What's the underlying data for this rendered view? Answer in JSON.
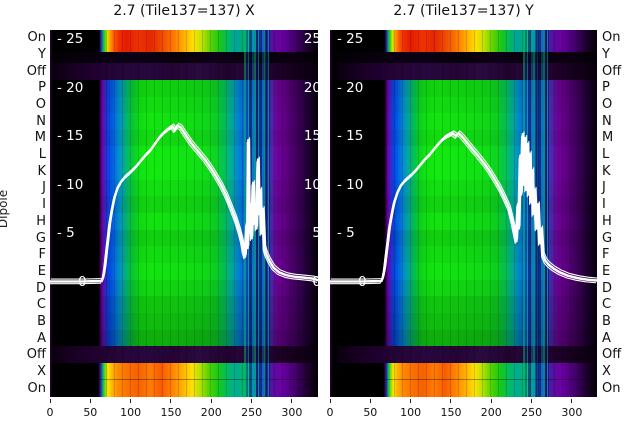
{
  "figure": {
    "ylabel": "Dipole",
    "x_ticks": [
      "0",
      "50",
      "100",
      "150",
      "200",
      "250",
      "300"
    ],
    "dipole_labels": [
      "On",
      "Y",
      "Off",
      "P",
      "O",
      "N",
      "M",
      "L",
      "K",
      "J",
      "I",
      "H",
      "G",
      "F",
      "E",
      "D",
      "C",
      "B",
      "A",
      "Off",
      "X",
      "On"
    ],
    "inner_scale_labels": [
      "- 25",
      "- 20",
      "- 15",
      "- 10",
      "- 5",
      "0"
    ],
    "right_scale_labels": [
      "25",
      "20",
      "15",
      "10",
      "5",
      "0"
    ],
    "colors": {
      "background": "#ffffff",
      "plot_background": "#000000",
      "curve": "#ffffff",
      "text": "#111111"
    }
  },
  "chart_data": {
    "type": "heatmap",
    "description": "Two spectrogram panels (power vs frequency channel) for each dipole/test state of Tile137, X and Y polarisations, with overlaid white bandpass curves on an inner 0-25 scale",
    "x_range": [
      0,
      332
    ],
    "x_ticks": [
      0,
      50,
      100,
      150,
      200,
      250,
      300
    ],
    "value_ticks": [
      25,
      20,
      15,
      10,
      5,
      0
    ],
    "y_axis_label": "Dipole",
    "y_categories": [
      "On",
      "Y",
      "Off",
      "P",
      "O",
      "N",
      "M",
      "L",
      "K",
      "J",
      "I",
      "H",
      "G",
      "F",
      "E",
      "D",
      "C",
      "B",
      "A",
      "Off",
      "X",
      "On"
    ],
    "rows": [
      {
        "label": "On",
        "type": "hot-top",
        "weight": 1.3
      },
      {
        "label": "Y",
        "type": "dark",
        "weight": 0.7
      },
      {
        "label": "Off",
        "type": "off"
      },
      {
        "label": "P",
        "type": "mid",
        "brightness": 0.96
      },
      {
        "label": "O",
        "type": "mid",
        "brightness": 1.0
      },
      {
        "label": "N",
        "type": "mid",
        "brightness": 1.04
      },
      {
        "label": "M",
        "type": "mid",
        "brightness": 1.0
      },
      {
        "label": "L",
        "type": "mid",
        "brightness": 1.07
      },
      {
        "label": "K",
        "type": "mid",
        "brightness": 1.07
      },
      {
        "label": "J",
        "type": "mid",
        "brightness": 1.02
      },
      {
        "label": "I",
        "type": "mid",
        "brightness": 0.97
      },
      {
        "label": "H",
        "type": "mid",
        "brightness": 1.03
      },
      {
        "label": "G",
        "type": "mid",
        "brightness": 0.95
      },
      {
        "label": "F",
        "type": "mid",
        "brightness": 1.0
      },
      {
        "label": "E",
        "type": "mid",
        "brightness": 1.04
      },
      {
        "label": "D",
        "type": "mid",
        "brightness": 0.98
      },
      {
        "label": "C",
        "type": "mid",
        "brightness": 0.9
      },
      {
        "label": "B",
        "type": "mid",
        "brightness": 0.86
      },
      {
        "label": "A",
        "type": "mid",
        "brightness": 0.8
      },
      {
        "label": "Off",
        "type": "off"
      },
      {
        "label": "X",
        "type": "hot-bottom"
      },
      {
        "label": "On",
        "type": "hot-bottom"
      }
    ],
    "panels": [
      {
        "title": "2.7 (Tile137=137) X",
        "curve": [
          [
            0,
            0.05
          ],
          [
            40,
            0.05
          ],
          [
            64,
            0.1
          ],
          [
            66,
            0.5
          ],
          [
            68,
            1.5
          ],
          [
            70,
            3.0
          ],
          [
            72,
            4.5
          ],
          [
            74,
            6.0
          ],
          [
            77,
            7.5
          ],
          [
            80,
            8.7
          ],
          [
            84,
            9.7
          ],
          [
            88,
            10.3
          ],
          [
            93,
            10.8
          ],
          [
            100,
            11.3
          ],
          [
            106,
            11.8
          ],
          [
            112,
            12.4
          ],
          [
            118,
            13.0
          ],
          [
            124,
            13.5
          ],
          [
            130,
            14.2
          ],
          [
            136,
            14.9
          ],
          [
            142,
            15.4
          ],
          [
            148,
            15.8
          ],
          [
            152,
            16.0
          ],
          [
            155,
            15.6
          ],
          [
            158,
            16.1
          ],
          [
            162,
            15.9
          ],
          [
            166,
            15.4
          ],
          [
            170,
            14.9
          ],
          [
            175,
            14.3
          ],
          [
            180,
            13.8
          ],
          [
            186,
            13.2
          ],
          [
            192,
            12.6
          ],
          [
            198,
            11.9
          ],
          [
            205,
            11.0
          ],
          [
            212,
            10.0
          ],
          [
            218,
            9.0
          ],
          [
            224,
            7.8
          ],
          [
            230,
            6.5
          ],
          [
            235,
            5.2
          ],
          [
            238,
            4.2
          ],
          [
            240,
            3.2
          ],
          [
            242,
            2.6
          ],
          [
            244,
            6.0
          ],
          [
            245,
            3.5
          ],
          [
            246,
            14.6
          ],
          [
            247,
            5.0
          ],
          [
            249,
            8.0
          ],
          [
            250,
            4.5
          ],
          [
            252,
            10.2
          ],
          [
            253,
            6.0
          ],
          [
            255,
            8.0
          ],
          [
            256,
            5.5
          ],
          [
            258,
            12.6
          ],
          [
            259,
            7.0
          ],
          [
            261,
            9.5
          ],
          [
            262,
            5.0
          ],
          [
            264,
            7.5
          ],
          [
            266,
            3.5
          ],
          [
            268,
            2.9
          ],
          [
            272,
            2.2
          ],
          [
            277,
            1.5
          ],
          [
            284,
            1.0
          ],
          [
            293,
            0.7
          ],
          [
            303,
            0.55
          ],
          [
            315,
            0.45
          ],
          [
            326,
            0.35
          ],
          [
            332,
            0.2
          ]
        ]
      },
      {
        "title": "2.7 (Tile137=137) Y",
        "curve": [
          [
            0,
            0.05
          ],
          [
            40,
            0.05
          ],
          [
            64,
            0.1
          ],
          [
            66,
            0.5
          ],
          [
            68,
            1.4
          ],
          [
            70,
            2.8
          ],
          [
            72,
            4.2
          ],
          [
            74,
            5.6
          ],
          [
            77,
            7.0
          ],
          [
            80,
            8.2
          ],
          [
            84,
            9.2
          ],
          [
            88,
            9.9
          ],
          [
            93,
            10.4
          ],
          [
            100,
            10.9
          ],
          [
            106,
            11.4
          ],
          [
            112,
            12.0
          ],
          [
            118,
            12.6
          ],
          [
            124,
            13.1
          ],
          [
            130,
            13.7
          ],
          [
            136,
            14.3
          ],
          [
            142,
            14.8
          ],
          [
            148,
            15.1
          ],
          [
            153,
            15.3
          ],
          [
            157,
            15.0
          ],
          [
            160,
            15.3
          ],
          [
            164,
            15.0
          ],
          [
            168,
            14.6
          ],
          [
            173,
            14.1
          ],
          [
            178,
            13.6
          ],
          [
            184,
            13.0
          ],
          [
            190,
            12.4
          ],
          [
            197,
            11.6
          ],
          [
            204,
            10.7
          ],
          [
            211,
            9.7
          ],
          [
            217,
            8.7
          ],
          [
            223,
            7.6
          ],
          [
            227,
            6.2
          ],
          [
            230,
            5.0
          ],
          [
            232,
            4.2
          ],
          [
            234,
            8.0
          ],
          [
            235,
            5.5
          ],
          [
            237,
            13.0
          ],
          [
            238,
            9.0
          ],
          [
            240,
            15.2
          ],
          [
            241,
            10.0
          ],
          [
            243,
            14.8
          ],
          [
            244,
            9.5
          ],
          [
            246,
            14.2
          ],
          [
            247,
            9.0
          ],
          [
            249,
            13.2
          ],
          [
            250,
            8.2
          ],
          [
            252,
            11.5
          ],
          [
            253,
            7.0
          ],
          [
            255,
            9.5
          ],
          [
            257,
            5.5
          ],
          [
            259,
            8.0
          ],
          [
            261,
            4.0
          ],
          [
            263,
            5.5
          ],
          [
            265,
            2.8
          ],
          [
            268,
            2.2
          ],
          [
            272,
            1.8
          ],
          [
            278,
            1.4
          ],
          [
            286,
            1.0
          ],
          [
            296,
            0.65
          ],
          [
            308,
            0.4
          ],
          [
            320,
            0.25
          ],
          [
            332,
            0.15
          ]
        ]
      }
    ]
  }
}
